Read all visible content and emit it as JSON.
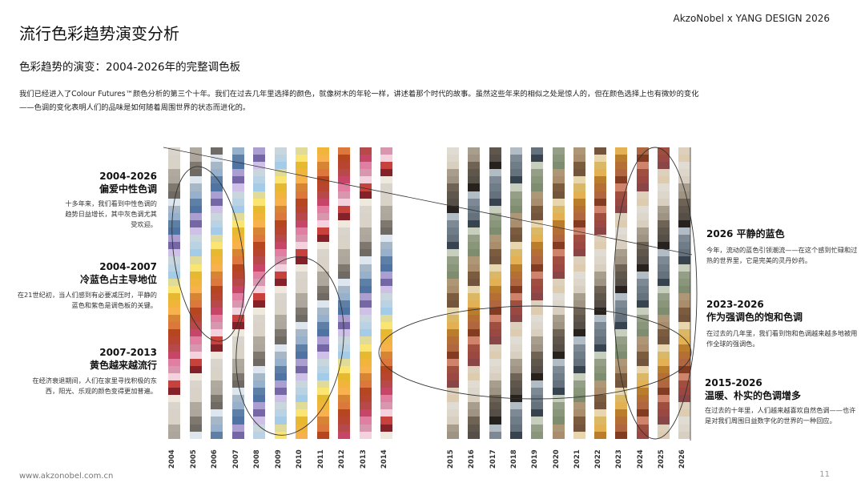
{
  "header": {
    "brand": "AkzoNobel x YANG DESIGN 2026",
    "title": "流行色彩趋势演变分析",
    "subtitle": "色彩趋势的演变：2004-2026年的完整调色板",
    "intro": "我们已经进入了Colour Futures™颜色分析的第三个十年。我们在过去几年里选择的颜色，就像树木的年轮一样，讲述着那个时代的故事。虽然这些年来的相似之处是惊人的，但在颜色选择上也有微妙的变化——色调的变化表明人们的品味是如何随着周围世界的状态而进化的。"
  },
  "annotations_left": [
    {
      "head": "2004-2026",
      "head2": "偏爱中性色调",
      "body": "十多年来，我们看到中性色调的趋势日益增长，其中灰色调尤其受欢迎。"
    },
    {
      "head": "2004-2007",
      "head2": "冷蓝色占主导地位",
      "body": "在21世纪初，当人们感到有必要减压时，平静的蓝色和紫色是调色板的关键。"
    },
    {
      "head": "2007-2013",
      "head2": "黄色越来越流行",
      "body": "在经济衰退期间，人们在家里寻找积极的东西，阳光、乐观的颜色变得更加普遍。"
    }
  ],
  "annotations_right": [
    {
      "head": "2026 平静的蓝色",
      "body": "今年，流动的蓝色引领潮流——在这个感到忙碌和过热的世界里，它是完美的灵丹妙药。"
    },
    {
      "head": "2023-2026",
      "head2": "作为强调色的饱和色调",
      "body": "在过去的几年里，我们看到饱和色调越来越多地被用作全球的强调色。"
    },
    {
      "head": "2015-2026",
      "head2": "温暖、朴实的色调增多",
      "body": "在过去的十年里，人们越来越喜欢自然色调——也许是对我们周围日益数字化的世界的一种回应。"
    }
  ],
  "years_group1": [
    "2004",
    "2005",
    "2006",
    "2007",
    "2008",
    "2009",
    "2010",
    "2011",
    "2012",
    "2013",
    "2014"
  ],
  "years_group2": [
    "2015",
    "2016",
    "2017",
    "2018",
    "2019",
    "2020",
    "2021",
    "2022",
    "2023",
    "2024",
    "2025",
    "2026"
  ],
  "footer": {
    "url": "www.akzonobel.com.cn",
    "page": "11"
  }
}
